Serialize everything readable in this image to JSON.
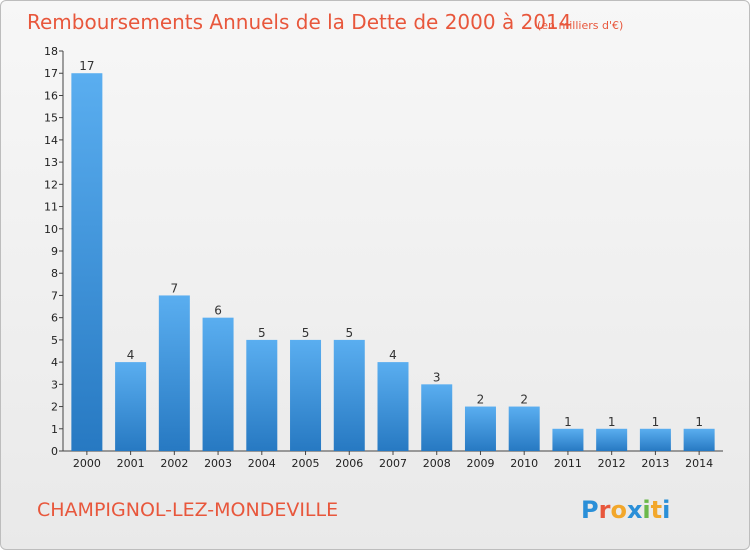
{
  "chart_data": {
    "type": "bar",
    "title": "Remboursements Annuels de la Dette de 2000 à 2014",
    "unit": "(en milliers d'€)",
    "categories": [
      "2000",
      "2001",
      "2002",
      "2003",
      "2004",
      "2005",
      "2006",
      "2007",
      "2008",
      "2009",
      "2010",
      "2011",
      "2012",
      "2013",
      "2014"
    ],
    "values": [
      17,
      4,
      7,
      6,
      5,
      5,
      5,
      4,
      3,
      2,
      2,
      1,
      1,
      1,
      1
    ],
    "ylim": [
      0,
      18
    ],
    "yticks": [
      0,
      1,
      2,
      3,
      4,
      5,
      6,
      7,
      8,
      9,
      10,
      11,
      12,
      13,
      14,
      15,
      16,
      17,
      18
    ],
    "grid": false,
    "bar_color": "#3d8fd6"
  },
  "footer": {
    "commune": "CHAMPIGNOL-LEZ-MONDEVILLE",
    "logo": "Proxiti",
    "logo_colors": [
      "#2a8fd8",
      "#e8573c",
      "#f2a72b",
      "#2a8fd8",
      "#6bb84a",
      "#f2a72b",
      "#2a8fd8"
    ]
  }
}
